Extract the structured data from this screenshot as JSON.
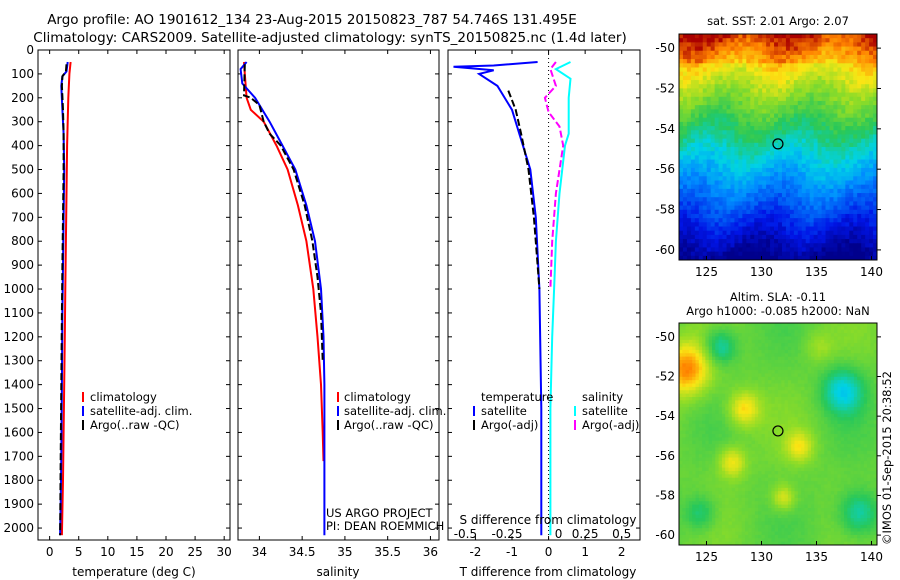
{
  "header": {
    "title_line1": "Argo profile: AO 1901612_134 23-Aug-2015 20150823_787 54.746S 131.495E",
    "title_line2": "Climatology: CARS2009. Satellite-adjusted climatology: synTS_20150825.nc (1.4d later)"
  },
  "colors": {
    "climatology": "#ff0000",
    "satellite": "#0000ff",
    "argo": "#000000",
    "sal_satellite": "#00ffff",
    "sal_argo": "#ff00ff"
  },
  "depth_axis": {
    "ticks": [
      "0",
      "100",
      "200",
      "300",
      "400",
      "500",
      "600",
      "700",
      "800",
      "900",
      "1000",
      "1100",
      "1200",
      "1300",
      "1400",
      "1500",
      "1600",
      "1700",
      "1800",
      "1900",
      "2000"
    ]
  },
  "chart_data": [
    {
      "type": "line",
      "name": "temperature-profile",
      "xlabel": "temperature (deg C)",
      "xlim": [
        -2,
        31
      ],
      "ylim": [
        2050,
        0
      ],
      "xticks": [
        "0",
        "5",
        "10",
        "15",
        "20",
        "25",
        "30"
      ],
      "legend": [
        "climatology",
        "satellite-adj. clim.",
        "Argo(..raw -QC)"
      ],
      "series": [
        {
          "name": "climatology",
          "color": "climatology",
          "x": [
            3.6,
            3.4,
            3.2,
            3.1,
            3.0,
            2.9,
            2.8,
            2.7,
            2.6,
            2.5,
            2.4,
            2.3,
            2.1
          ],
          "y": [
            50,
            100,
            200,
            300,
            400,
            600,
            800,
            1000,
            1200,
            1400,
            1600,
            1800,
            2030
          ]
        },
        {
          "name": "satellite-adj. clim.",
          "color": "satellite",
          "x": [
            3.1,
            2.9,
            2.2,
            2.0,
            2.2,
            2.4,
            2.5,
            2.4,
            2.3,
            2.2,
            2.1,
            2.0,
            1.9,
            1.8
          ],
          "y": [
            50,
            90,
            110,
            150,
            250,
            350,
            500,
            700,
            900,
            1100,
            1400,
            1700,
            1900,
            2030
          ]
        },
        {
          "name": "Argo(..raw -QC)",
          "color": "argo",
          "x": [
            2.9,
            2.8,
            2.2,
            2.1,
            2.3,
            2.4,
            2.4,
            2.3,
            2.2,
            2.1,
            2.0,
            1.9,
            1.8
          ],
          "y": [
            60,
            90,
            110,
            150,
            250,
            350,
            500,
            700,
            900,
            1100,
            1400,
            1700,
            2030
          ]
        }
      ]
    },
    {
      "type": "line",
      "name": "salinity-profile",
      "xlabel": "salinity",
      "xlim": [
        33.75,
        36.1
      ],
      "ylim": [
        2050,
        0
      ],
      "xticks": [
        "34",
        "34.5",
        "35",
        "35.5",
        "36"
      ],
      "legend": [
        "climatology",
        "satellite-adj. clim.",
        "Argo(..raw -QC)"
      ],
      "annotation_lines": [
        "US ARGO PROJECT",
        "PI: DEAN ROEMMICH"
      ],
      "series": [
        {
          "name": "climatology",
          "color": "climatology",
          "x": [
            33.82,
            33.83,
            33.85,
            33.9,
            34.05,
            34.2,
            34.33,
            34.45,
            34.55,
            34.63,
            34.68,
            34.72,
            34.74,
            34.75
          ],
          "y": [
            50,
            100,
            200,
            250,
            300,
            400,
            500,
            650,
            800,
            1000,
            1200,
            1400,
            1600,
            1720
          ]
        },
        {
          "name": "satellite-adj. clim.",
          "color": "satellite",
          "x": [
            33.85,
            33.78,
            33.8,
            33.95,
            34.12,
            34.27,
            34.42,
            34.55,
            34.65,
            34.72,
            34.75,
            34.76,
            34.76,
            34.76
          ],
          "y": [
            50,
            80,
            140,
            200,
            300,
            400,
            500,
            650,
            800,
            1000,
            1200,
            1400,
            1700,
            2030
          ]
        },
        {
          "name": "Argo(..raw -QC)",
          "color": "argo",
          "x": [
            33.83,
            33.82,
            33.9,
            34.0,
            34.05,
            34.12,
            34.25,
            34.4,
            34.53,
            34.62,
            34.68,
            34.72,
            34.74
          ],
          "y": [
            60,
            190,
            200,
            230,
            300,
            350,
            400,
            500,
            650,
            800,
            950,
            1100,
            1300
          ]
        }
      ]
    },
    {
      "type": "line",
      "name": "difference-profile",
      "xlabel": "T difference from climatology",
      "xlabel_top": "S difference from climatology",
      "xlim": [
        -2.75,
        2.5
      ],
      "ylim": [
        2050,
        0
      ],
      "xticks": [
        "-2",
        "-1",
        "0",
        "1",
        "2"
      ],
      "top_xticks": [
        "-0.5",
        "-0.25",
        "0",
        "0.25",
        "0.5"
      ],
      "legend_title_temperature": "temperature",
      "legend_title_salinity": "salinity",
      "legend_temperature": [
        "satellite",
        "Argo(-adj)"
      ],
      "legend_salinity": [
        "satellite",
        "Argo(-adj)"
      ],
      "series": [
        {
          "name": "temperature satellite",
          "color": "satellite",
          "x": [
            -0.3,
            -1.5,
            -2.6,
            -1.5,
            -1.9,
            -1.4,
            -1.0,
            -0.8,
            -0.5,
            -0.35,
            -0.25,
            -0.2,
            -0.2
          ],
          "y": [
            50,
            65,
            70,
            85,
            100,
            150,
            250,
            350,
            500,
            700,
            1000,
            1500,
            2030
          ]
        },
        {
          "name": "temperature Argo(-adj)",
          "color": "argo",
          "x": [
            -1.1,
            -0.9,
            -0.75,
            -0.55,
            -0.4,
            -0.3,
            -0.25
          ],
          "y": [
            170,
            250,
            350,
            500,
            700,
            900,
            1000
          ]
        },
        {
          "name": "salinity satellite",
          "color": "sal_satellite",
          "x": [
            0.6,
            0.2,
            0.6,
            0.55,
            0.55,
            0.45,
            0.3,
            0.2,
            0.15,
            0.1,
            0.05,
            0.05
          ],
          "y": [
            50,
            80,
            120,
            200,
            350,
            400,
            600,
            800,
            1000,
            1200,
            1500,
            2030
          ]
        },
        {
          "name": "salinity Argo(-adj)",
          "color": "sal_argo",
          "x": [
            0.2,
            0.05,
            0.2,
            -0.1,
            0.0,
            0.3,
            0.4,
            0.2,
            0.1,
            0.05
          ],
          "y": [
            50,
            80,
            150,
            200,
            260,
            320,
            400,
            600,
            800,
            1000
          ]
        }
      ]
    },
    {
      "type": "heatmap",
      "name": "sst-map",
      "title": "sat. SST: 2.01 Argo: 2.07",
      "xticks": [
        "125",
        "130",
        "135",
        "140"
      ],
      "yticks": [
        "-50",
        "-52",
        "-54",
        "-56",
        "-58",
        "-60"
      ],
      "xlim": [
        122.5,
        140.5
      ],
      "ylim": [
        -60.5,
        -49.3
      ],
      "marker": {
        "lon": 131.495,
        "lat": -54.746
      }
    },
    {
      "type": "heatmap",
      "name": "sla-map",
      "title_line1": "Altim. SLA: -0.11",
      "title_line2": "Argo h1000: -0.085 h2000: NaN",
      "xticks": [
        "125",
        "130",
        "135",
        "140"
      ],
      "yticks": [
        "-50",
        "-52",
        "-54",
        "-56",
        "-58",
        "-60"
      ],
      "xlim": [
        122.5,
        140.5
      ],
      "ylim": [
        -60.5,
        -49.3
      ],
      "marker": {
        "lon": 131.495,
        "lat": -54.746
      }
    }
  ],
  "footer": {
    "stamp": "©IMOS 01-Sep-2015 20:38:52"
  }
}
